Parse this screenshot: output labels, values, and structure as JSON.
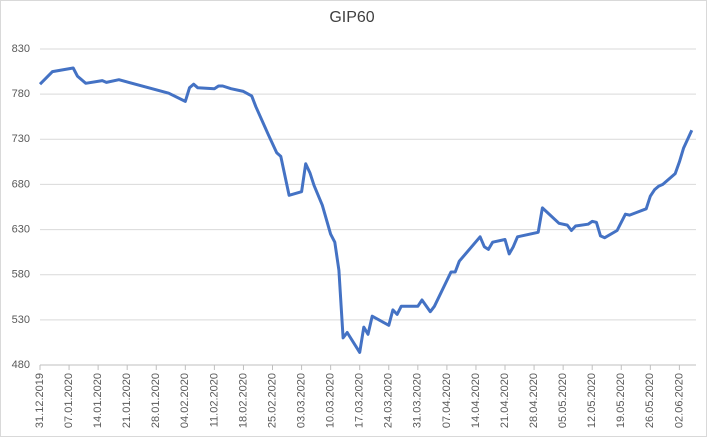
{
  "chart_data": {
    "type": "line",
    "title": "GIP60",
    "x": [
      "31.12.2019",
      "03.01.2020",
      "08.01.2020",
      "09.01.2020",
      "11.01.2020",
      "15.01.2020",
      "16.01.2020",
      "19.01.2020",
      "31.01.2020",
      "04.02.2020",
      "05.02.2020",
      "06.02.2020",
      "07.02.2020",
      "11.02.2020",
      "12.02.2020",
      "13.02.2020",
      "15.02.2020",
      "18.02.2020",
      "20.02.2020",
      "21.02.2020",
      "24.02.2020",
      "26.02.2020",
      "27.02.2020",
      "29.02.2020",
      "03.03.2020",
      "04.03.2020",
      "05.03.2020",
      "06.03.2020",
      "08.03.2020",
      "10.03.2020",
      "11.03.2020",
      "12.03.2020",
      "13.03.2020",
      "14.03.2020",
      "17.03.2020",
      "18.03.2020",
      "19.03.2020",
      "20.03.2020",
      "24.03.2020",
      "25.03.2020",
      "26.03.2020",
      "27.03.2020",
      "31.03.2020",
      "01.04.2020",
      "03.04.2020",
      "04.04.2020",
      "08.04.2020",
      "09.04.2020",
      "10.04.2020",
      "15.04.2020",
      "16.04.2020",
      "17.04.2020",
      "18.04.2020",
      "21.04.2020",
      "22.04.2020",
      "23.04.2020",
      "24.04.2020",
      "29.04.2020",
      "30.04.2020",
      "04.05.2020",
      "06.05.2020",
      "07.05.2020",
      "08.05.2020",
      "11.05.2020",
      "12.05.2020",
      "13.05.2020",
      "14.05.2020",
      "15.05.2020",
      "18.05.2020",
      "20.05.2020",
      "21.05.2020",
      "25.05.2020",
      "26.05.2020",
      "27.05.2020",
      "28.05.2020",
      "29.05.2020",
      "01.06.2020",
      "02.06.2020",
      "03.06.2020",
      "05.06.2020"
    ],
    "series": [
      {
        "name": "GIP60",
        "color": "#4472c4",
        "values": [
          791,
          805,
          809,
          800,
          792,
          795,
          793,
          796,
          781,
          772,
          787,
          791,
          787,
          786,
          789,
          789,
          786,
          783,
          778,
          766,
          735,
          715,
          711,
          668,
          672,
          703,
          693,
          679,
          657,
          625,
          616,
          585,
          510,
          516,
          494,
          522,
          514,
          534,
          524,
          541,
          536,
          545,
          545,
          552,
          539,
          545,
          583,
          583,
          595,
          622,
          611,
          608,
          616,
          619,
          603,
          611,
          622,
          627,
          654,
          637,
          635,
          629,
          634,
          636,
          639,
          638,
          623,
          621,
          629,
          647,
          646,
          653,
          667,
          674,
          678,
          680,
          692,
          705,
          720,
          740
        ]
      }
    ],
    "xlim": [
      "31.12.2019",
      "06.06.2020"
    ],
    "xticks": [
      "31.12.2019",
      "07.01.2020",
      "14.01.2020",
      "21.01.2020",
      "28.01.2020",
      "04.02.2020",
      "11.02.2020",
      "18.02.2020",
      "25.02.2020",
      "03.03.2020",
      "10.03.2020",
      "17.03.2020",
      "24.03.2020",
      "31.03.2020",
      "07.04.2020",
      "14.04.2020",
      "21.04.2020",
      "28.04.2020",
      "05.05.2020",
      "12.05.2020",
      "19.05.2020",
      "26.05.2020",
      "02.06.2020"
    ],
    "ylim": [
      480,
      830
    ],
    "yticks": [
      480,
      530,
      580,
      630,
      680,
      730,
      780,
      830
    ],
    "grid": true
  }
}
